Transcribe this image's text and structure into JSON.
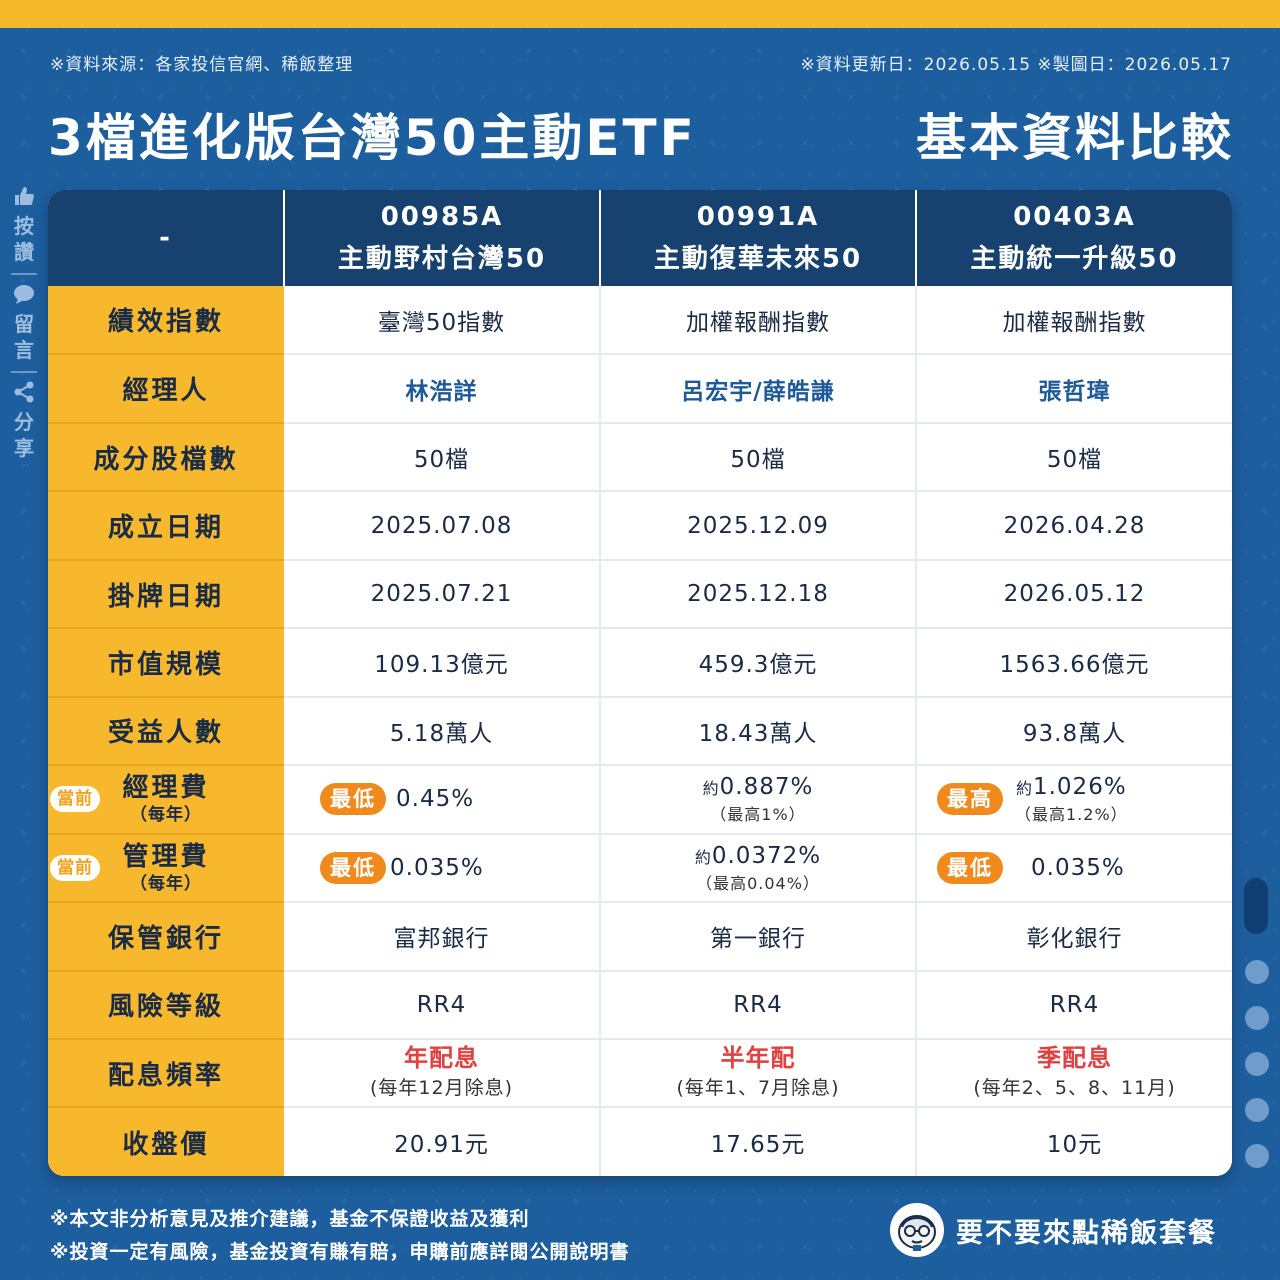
{
  "meta": {
    "source": "※資料來源：各家投信官網、稀飯整理",
    "dates": "※資料更新日：2026.05.15 ※製圖日：2026.05.17"
  },
  "title": {
    "main": "3檔進化版台灣50主動ETF",
    "sub": "基本資料比較"
  },
  "side": {
    "like": "按讚",
    "comment": "留言",
    "share": "分享"
  },
  "table": {
    "corner": "-",
    "funds": [
      {
        "code": "00985A",
        "name": "主動野村台灣50"
      },
      {
        "code": "00991A",
        "name": "主動復華未來50"
      },
      {
        "code": "00403A",
        "name": "主動統一升級50"
      }
    ],
    "rows": {
      "index": {
        "label": "績效指數",
        "values": [
          "臺灣50指數",
          "加權報酬指數",
          "加權報酬指數"
        ]
      },
      "manager": {
        "label": "經理人",
        "values": [
          "林浩詳",
          "呂宏宇/薛皓謙",
          "張哲瑋"
        ]
      },
      "holdings": {
        "label": "成分股檔數",
        "values": [
          "50檔",
          "50檔",
          "50檔"
        ]
      },
      "inception": {
        "label": "成立日期",
        "values": [
          "2025.07.08",
          "2025.12.09",
          "2026.04.28"
        ]
      },
      "listing": {
        "label": "掛牌日期",
        "values": [
          "2025.07.21",
          "2025.12.18",
          "2026.05.12"
        ]
      },
      "aum": {
        "label": "市值規模",
        "values": [
          "109.13億元",
          "459.3億元",
          "1563.66億元"
        ]
      },
      "holders": {
        "label": "受益人數",
        "values": [
          "5.18萬人",
          "18.43萬人",
          "93.8萬人"
        ]
      },
      "mgmt_fee": {
        "label": "經理費",
        "per_year": "（每年）",
        "current": "當前",
        "c1": {
          "badge": "最低",
          "value": "0.45%"
        },
        "c2": {
          "prefix": "約",
          "value": "0.887%",
          "note": "（最高1%）"
        },
        "c3": {
          "badge": "最高",
          "prefix": "約",
          "value": "1.026%",
          "note": "（最高1.2%）"
        }
      },
      "custody_fee": {
        "label": "管理費",
        "per_year": "（每年）",
        "current": "當前",
        "c1": {
          "badge": "最低",
          "value": "0.035%"
        },
        "c2": {
          "prefix": "約",
          "value": "0.0372%",
          "note": "（最高0.04%）"
        },
        "c3": {
          "badge": "最低",
          "value": "0.035%"
        }
      },
      "bank": {
        "label": "保管銀行",
        "values": [
          "富邦銀行",
          "第一銀行",
          "彰化銀行"
        ]
      },
      "risk": {
        "label": "風險等級",
        "values": [
          "RR4",
          "RR4",
          "RR4"
        ]
      },
      "dividend": {
        "label": "配息頻率",
        "values": [
          {
            "freq": "年配息",
            "detail": "(每年12月除息)"
          },
          {
            "freq": "半年配",
            "detail": "(每年1、7月除息)"
          },
          {
            "freq": "季配息",
            "detail": "(每年2、5、8、11月)"
          }
        ]
      },
      "price": {
        "label": "收盤價",
        "values": [
          "20.91元",
          "17.65元",
          "10元"
        ]
      }
    }
  },
  "footer": {
    "line1": "※本文非分析意見及推介建議，基金不保證收益及獲利",
    "line2": "※投資一定有風險，基金投資有賺有賠，申購前應詳閱公開說明書",
    "brand": "要不要來點稀飯套餐"
  },
  "colors": {
    "background": "#1d5e9e",
    "header": "#17416f",
    "label_column": "#f7b82d",
    "badge": "#f08a1c",
    "accent_red": "#e04040",
    "manager_blue": "#1f5a98"
  },
  "icons": [
    "thumbs-up-icon",
    "comment-bubble-icon",
    "share-icon",
    "avatar-icon"
  ]
}
